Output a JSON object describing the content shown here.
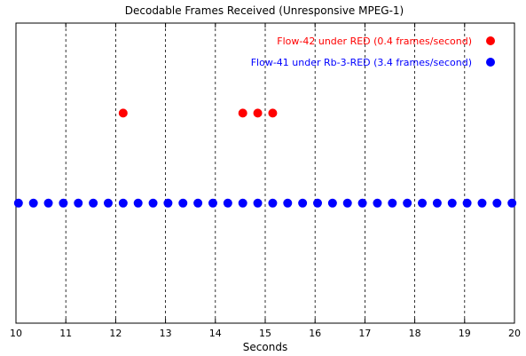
{
  "chart_data": {
    "type": "scatter",
    "title": "Decodable Frames Received (Unresponsive MPEG-1)",
    "xlabel": "Seconds",
    "ylabel": "",
    "xlim": [
      10,
      20
    ],
    "ylim": [
      0,
      1
    ],
    "x_ticks": [
      "10",
      "11",
      "12",
      "13",
      "14",
      "15",
      "16",
      "17",
      "18",
      "19",
      "20"
    ],
    "grid": "vertical dashed",
    "legend_position": "top-right",
    "series": [
      {
        "name": "Flow-42 under RED (0.4 frames/second)",
        "color": "#ff0000",
        "y": 0.7,
        "x": [
          12.15,
          14.55,
          14.85,
          15.15
        ]
      },
      {
        "name": "Flow-41 under Rb-3-RED (3.4 frames/second)",
        "color": "#0000ff",
        "y": 0.4,
        "x": [
          10.05,
          10.35,
          10.65,
          10.95,
          11.25,
          11.55,
          11.85,
          12.15,
          12.45,
          12.75,
          13.05,
          13.35,
          13.65,
          13.95,
          14.25,
          14.55,
          14.85,
          15.15,
          15.45,
          15.75,
          16.05,
          16.35,
          16.65,
          16.95,
          17.25,
          17.55,
          17.85,
          18.15,
          18.45,
          18.75,
          19.05,
          19.35,
          19.65,
          19.95
        ]
      }
    ]
  }
}
